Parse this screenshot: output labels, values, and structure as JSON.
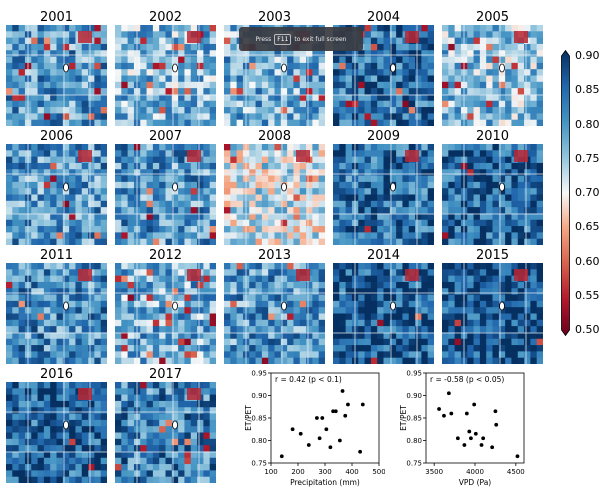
{
  "maps": [
    {
      "label": "2001",
      "mean": 0.8,
      "red": 0.15
    },
    {
      "label": "2002",
      "mean": 0.77,
      "red": 0.12
    },
    {
      "label": "2003",
      "mean": 0.78,
      "red": 0.14
    },
    {
      "label": "2004",
      "mean": 0.84,
      "red": 0.08
    },
    {
      "label": "2005",
      "mean": 0.76,
      "red": 0.15
    },
    {
      "label": "2006",
      "mean": 0.8,
      "red": 0.1
    },
    {
      "label": "2007",
      "mean": 0.8,
      "red": 0.12
    },
    {
      "label": "2008",
      "mean": 0.72,
      "red": 0.08
    },
    {
      "label": "2009",
      "mean": 0.84,
      "red": 0.06
    },
    {
      "label": "2010",
      "mean": 0.85,
      "red": 0.05
    },
    {
      "label": "2011",
      "mean": 0.81,
      "red": 0.12
    },
    {
      "label": "2012",
      "mean": 0.78,
      "red": 0.22
    },
    {
      "label": "2013",
      "mean": 0.8,
      "red": 0.05
    },
    {
      "label": "2014",
      "mean": 0.86,
      "red": 0.04
    },
    {
      "label": "2015",
      "mean": 0.87,
      "red": 0.04
    },
    {
      "label": "2016",
      "mean": 0.85,
      "red": 0.05
    },
    {
      "label": "2017",
      "mean": 0.82,
      "red": 0.08
    }
  ],
  "colorbar": {
    "ticks": [
      "0.90",
      "0.85",
      "0.80",
      "0.75",
      "0.70",
      "0.65",
      "0.60",
      "0.55",
      "0.50"
    ],
    "min": 0.5,
    "max": 0.9,
    "colors": [
      "#67001f",
      "#b2182b",
      "#d6604d",
      "#f4a582",
      "#f7f7f7",
      "#92c5de",
      "#4393c3",
      "#2166ac",
      "#053061"
    ]
  },
  "toast": {
    "press": "Press",
    "key": "F11",
    "rest": "to exit full screen"
  },
  "chart_data": [
    {
      "type": "scatter",
      "title": "",
      "annotation": "r = 0.42 (p < 0.1)",
      "xlabel": "Precipitation (mm)",
      "ylabel": "ET/PET",
      "xlim": [
        100,
        500
      ],
      "ylim": [
        0.75,
        0.95
      ],
      "xticks": [
        "100",
        "200",
        "300",
        "400",
        "500"
      ],
      "yticks": [
        "0.75",
        "0.80",
        "0.85",
        "0.90",
        "0.95"
      ],
      "points": [
        {
          "x": 140,
          "y": 0.765
        },
        {
          "x": 180,
          "y": 0.825
        },
        {
          "x": 210,
          "y": 0.815
        },
        {
          "x": 240,
          "y": 0.79
        },
        {
          "x": 270,
          "y": 0.85
        },
        {
          "x": 280,
          "y": 0.805
        },
        {
          "x": 290,
          "y": 0.85
        },
        {
          "x": 305,
          "y": 0.825
        },
        {
          "x": 320,
          "y": 0.785
        },
        {
          "x": 330,
          "y": 0.865
        },
        {
          "x": 340,
          "y": 0.865
        },
        {
          "x": 355,
          "y": 0.8
        },
        {
          "x": 365,
          "y": 0.91
        },
        {
          "x": 375,
          "y": 0.855
        },
        {
          "x": 385,
          "y": 0.88
        },
        {
          "x": 440,
          "y": 0.88
        },
        {
          "x": 430,
          "y": 0.775
        }
      ]
    },
    {
      "type": "scatter",
      "title": "",
      "annotation": "r = -0.58 (p < 0.05)",
      "xlabel": "VPD (Pa)",
      "ylabel": "ET/PET",
      "xlim": [
        3400,
        4600
      ],
      "ylim": [
        0.75,
        0.95
      ],
      "xticks": [
        "3500",
        "4000",
        "4500"
      ],
      "yticks": [
        "0.75",
        "0.80",
        "0.85",
        "0.90",
        "0.95"
      ],
      "points": [
        {
          "x": 3560,
          "y": 0.87
        },
        {
          "x": 3620,
          "y": 0.855
        },
        {
          "x": 3680,
          "y": 0.905
        },
        {
          "x": 3710,
          "y": 0.86
        },
        {
          "x": 3790,
          "y": 0.805
        },
        {
          "x": 3870,
          "y": 0.79
        },
        {
          "x": 3900,
          "y": 0.86
        },
        {
          "x": 3930,
          "y": 0.82
        },
        {
          "x": 3950,
          "y": 0.805
        },
        {
          "x": 3990,
          "y": 0.88
        },
        {
          "x": 4010,
          "y": 0.815
        },
        {
          "x": 4080,
          "y": 0.79
        },
        {
          "x": 4100,
          "y": 0.805
        },
        {
          "x": 4210,
          "y": 0.785
        },
        {
          "x": 4250,
          "y": 0.865
        },
        {
          "x": 4260,
          "y": 0.835
        },
        {
          "x": 4520,
          "y": 0.765
        }
      ]
    }
  ]
}
